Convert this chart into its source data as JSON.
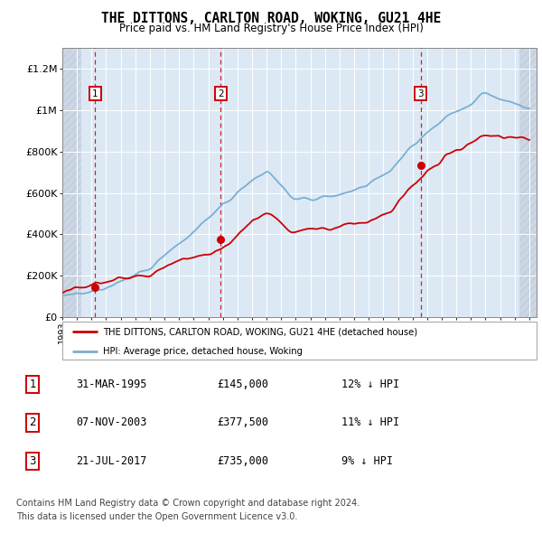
{
  "title": "THE DITTONS, CARLTON ROAD, WOKING, GU21 4HE",
  "subtitle": "Price paid vs. HM Land Registry's House Price Index (HPI)",
  "sale_dates_float": [
    1995.247,
    2003.854,
    2017.553
  ],
  "sale_prices": [
    145000,
    377500,
    735000
  ],
  "sale_labels": [
    "1",
    "2",
    "3"
  ],
  "sale_hpi_diff": [
    "12% ↓ HPI",
    "11% ↓ HPI",
    "9% ↓ HPI"
  ],
  "sale_date_strs": [
    "31-MAR-1995",
    "07-NOV-2003",
    "21-JUL-2017"
  ],
  "sale_price_strs": [
    "£145,000",
    "£377,500",
    "£735,000"
  ],
  "house_color": "#cc0000",
  "hpi_color": "#7bafd4",
  "ylim": [
    0,
    1300000
  ],
  "yticks": [
    0,
    200000,
    400000,
    600000,
    800000,
    1000000,
    1200000
  ],
  "ytick_labels": [
    "£0",
    "£200K",
    "£400K",
    "£600K",
    "£800K",
    "£1M",
    "£1.2M"
  ],
  "xstart": 1993,
  "xend": 2025,
  "legend_house": "THE DITTONS, CARLTON ROAD, WOKING, GU21 4HE (detached house)",
  "legend_hpi": "HPI: Average price, detached house, Woking",
  "footnote1": "Contains HM Land Registry data © Crown copyright and database right 2024.",
  "footnote2": "This data is licensed under the Open Government Licence v3.0.",
  "plot_bg": "#dce9f5",
  "hatch_alpha": 0.35
}
